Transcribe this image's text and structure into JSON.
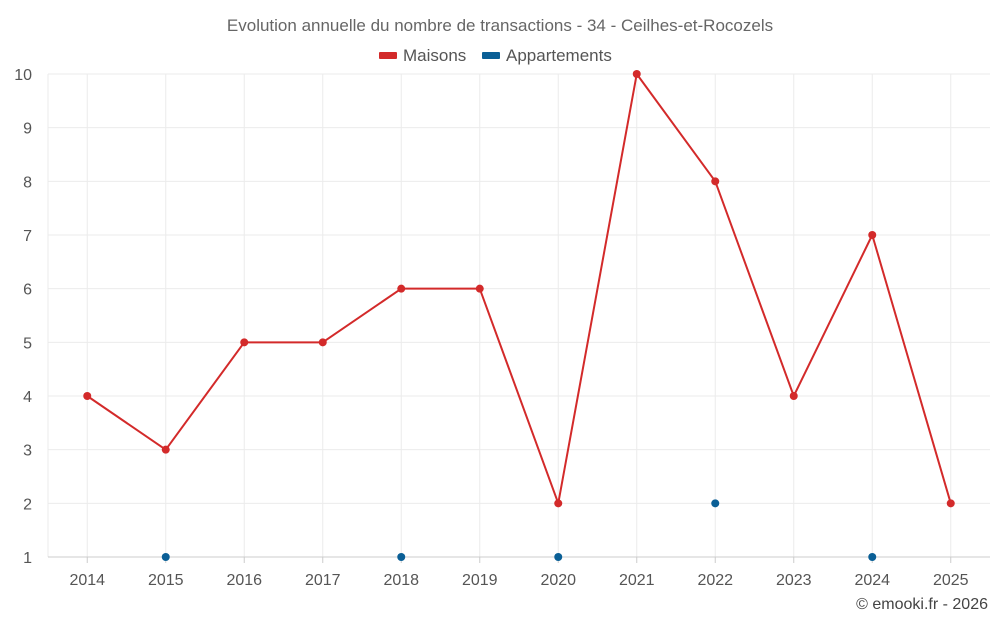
{
  "chart_data": {
    "type": "line",
    "title": "Evolution annuelle du nombre de transactions - 34 - Ceilhes-et-Rocozels",
    "categories": [
      "2014",
      "2015",
      "2016",
      "2017",
      "2018",
      "2019",
      "2020",
      "2021",
      "2022",
      "2023",
      "2024",
      "2025"
    ],
    "ylim": [
      1,
      10
    ],
    "yticks": [
      1,
      2,
      3,
      4,
      5,
      6,
      7,
      8,
      9,
      10
    ],
    "grid": true,
    "legend_position": "top-center",
    "series": [
      {
        "name": "Maisons",
        "color": "#d32a2a",
        "style": "line-markers",
        "values": [
          4,
          3,
          5,
          5,
          6,
          6,
          2,
          10,
          8,
          4,
          7,
          2
        ]
      },
      {
        "name": "Appartements",
        "color": "#0a5f96",
        "style": "markers",
        "values": [
          null,
          1,
          null,
          null,
          1,
          null,
          1,
          null,
          2,
          null,
          1,
          null
        ]
      }
    ]
  },
  "credit": "© emooki.fr - 2026"
}
